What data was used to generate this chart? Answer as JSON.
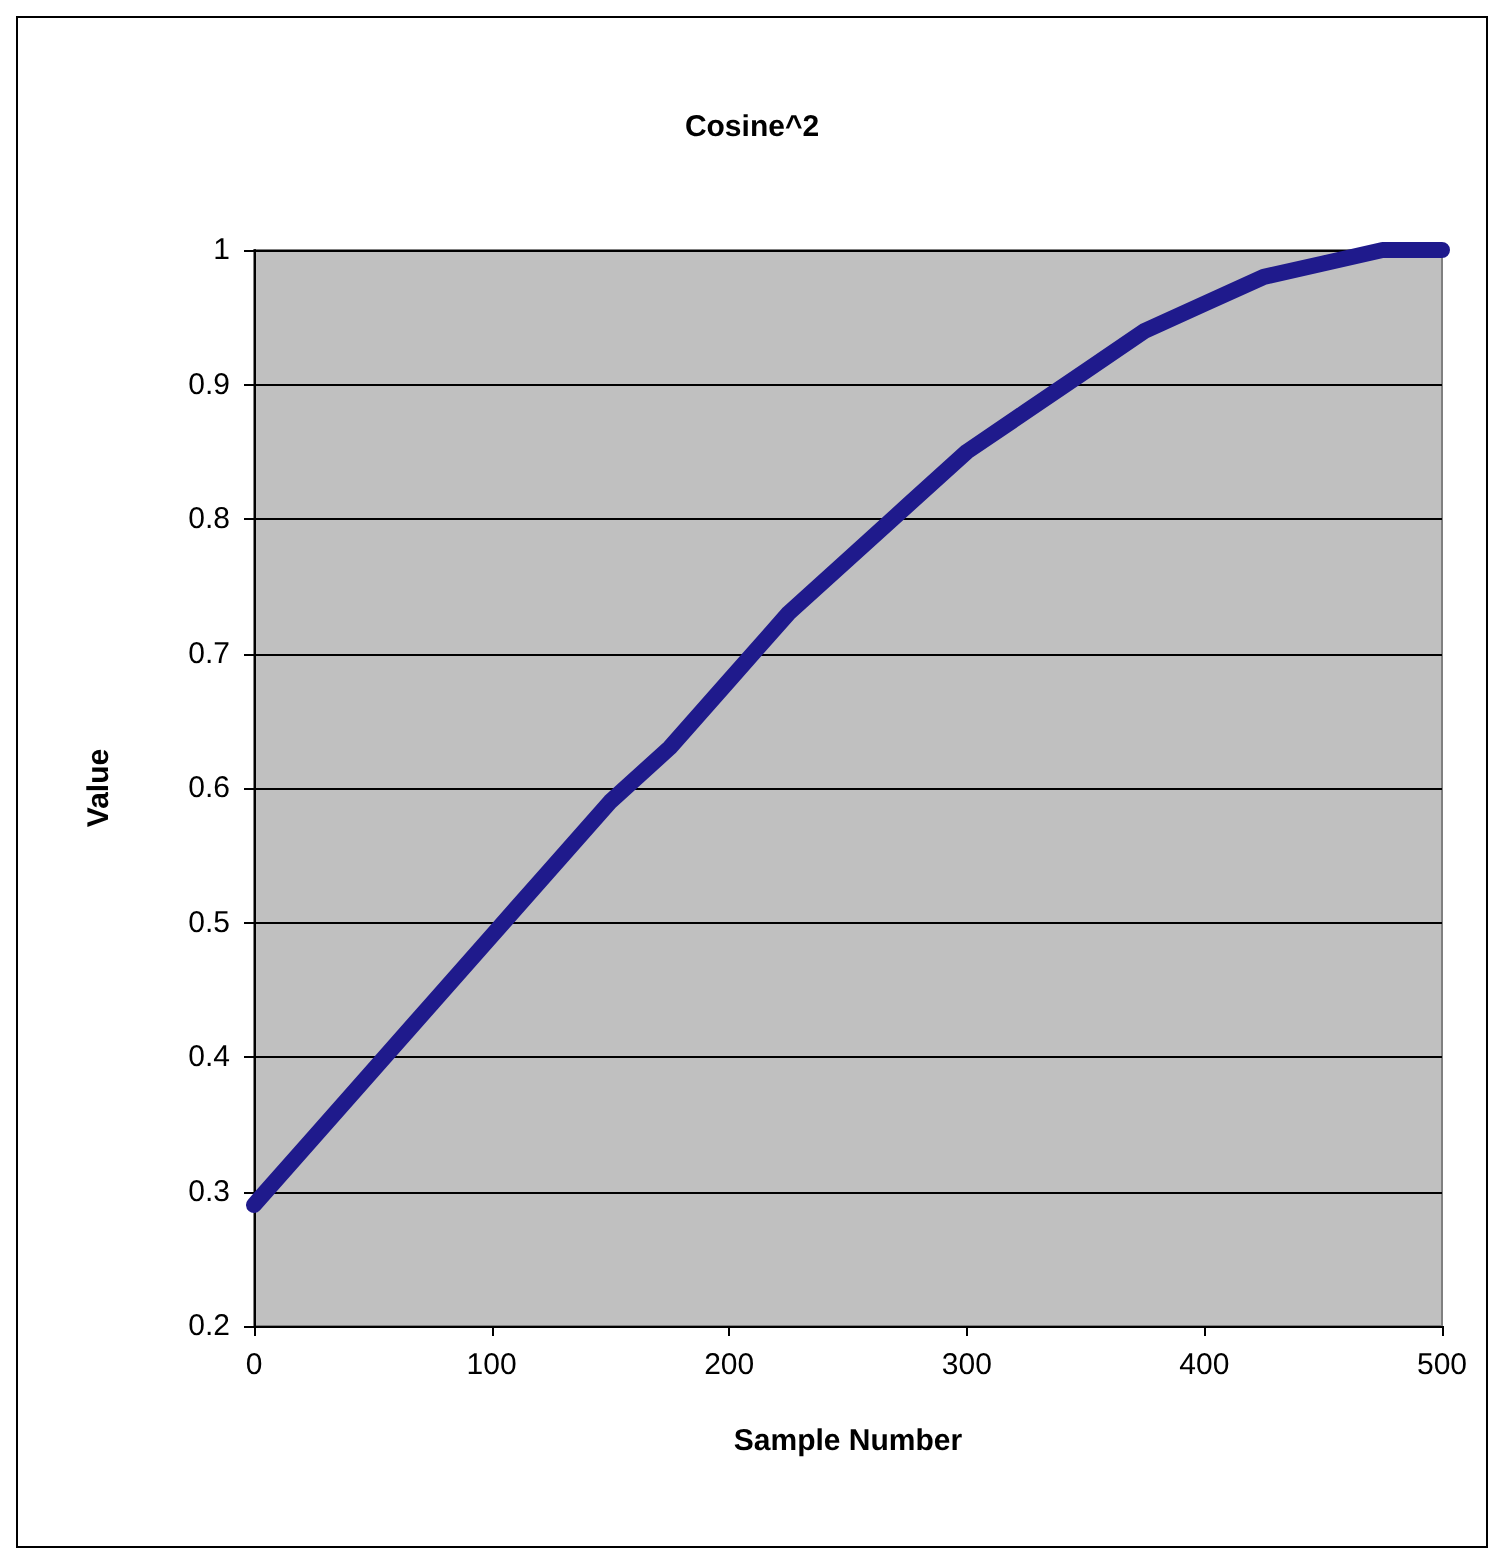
{
  "chart_data": {
    "type": "line",
    "title": "Cosine^2",
    "xlabel": "Sample Number",
    "ylabel": "Value",
    "x": [
      0,
      25,
      50,
      75,
      100,
      125,
      150,
      175,
      200,
      225,
      250,
      275,
      300,
      325,
      350,
      375,
      400,
      425,
      450,
      475,
      500
    ],
    "series": [
      {
        "color": "#1f1a8c",
        "values": [
          0.29,
          0.34,
          0.39,
          0.44,
          0.49,
          0.54,
          0.59,
          0.63,
          0.68,
          0.73,
          0.77,
          0.81,
          0.85,
          0.88,
          0.91,
          0.94,
          0.96,
          0.98,
          0.99,
          1.0,
          1.0
        ]
      }
    ],
    "xlim": [
      0,
      500
    ],
    "xticks": [
      0,
      100,
      200,
      300,
      400,
      500
    ],
    "ylim": [
      0.2,
      1
    ],
    "yticks": [
      0.2,
      0.3,
      0.4,
      0.5,
      0.6,
      0.7,
      0.8,
      0.9,
      1
    ],
    "grid": "y",
    "line_style": "solid"
  }
}
